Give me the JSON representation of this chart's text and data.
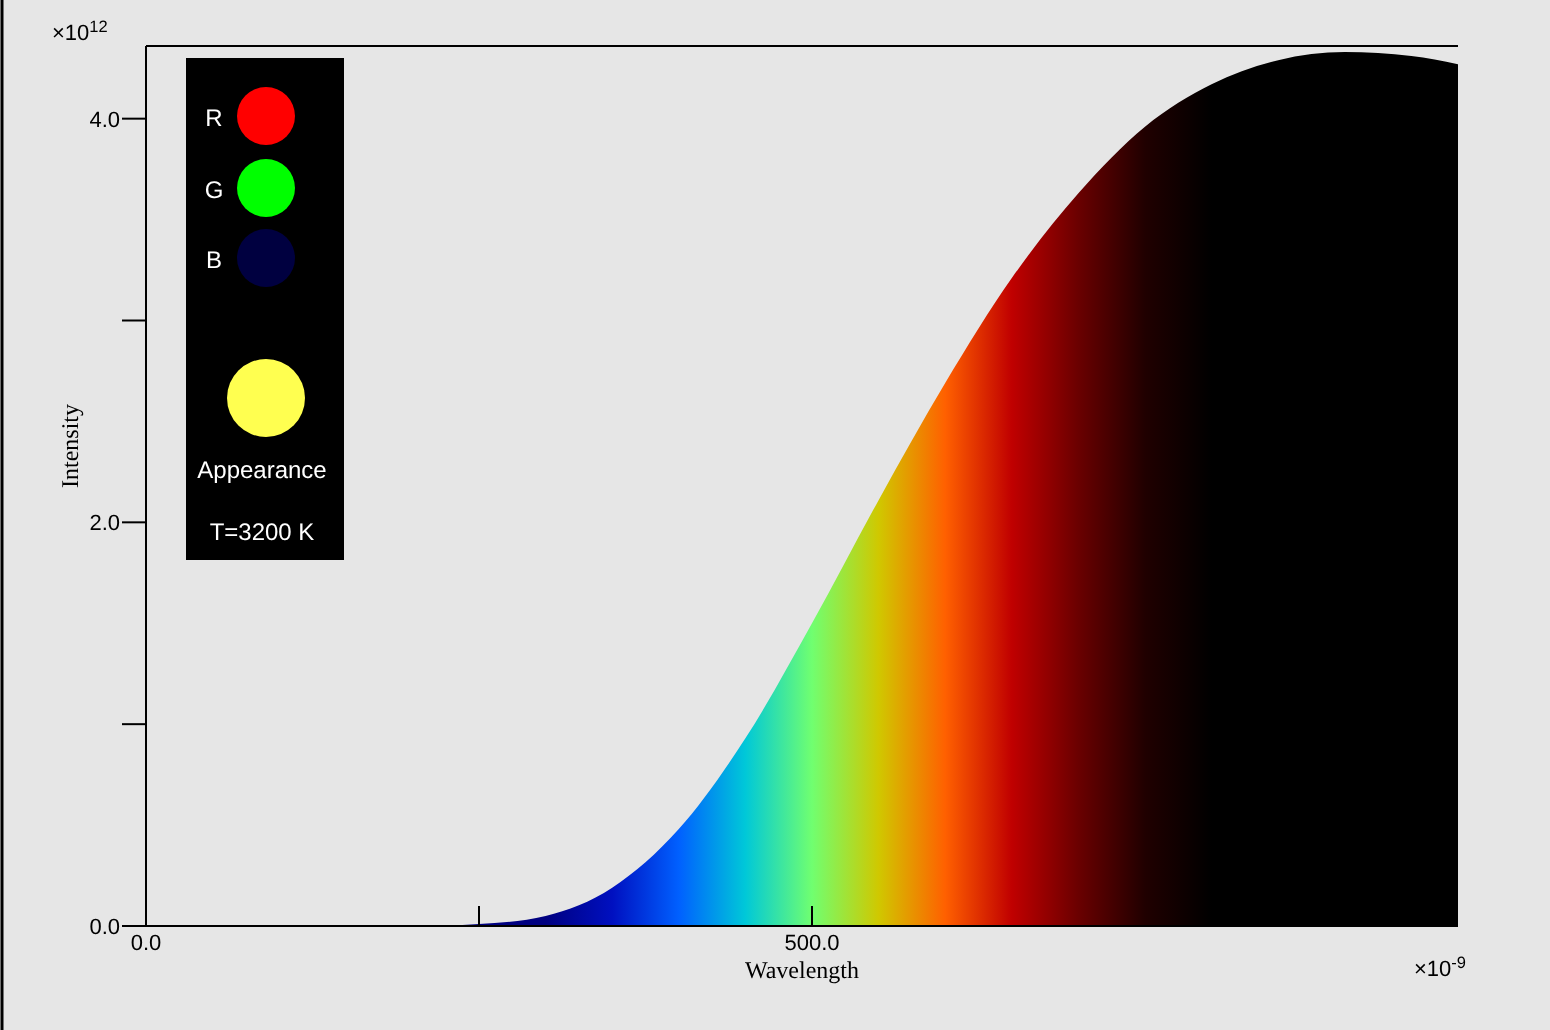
{
  "chart_data": {
    "type": "area",
    "xlabel": "Wavelength",
    "ylabel": "Intensity",
    "x": [
      0,
      50,
      100,
      150,
      200,
      250,
      300,
      350,
      400,
      450,
      500,
      550,
      600,
      650,
      700,
      750,
      800,
      850,
      900,
      950,
      985
    ],
    "values": [
      0,
      0,
      0,
      0,
      0,
      0.01,
      0.05,
      0.19,
      0.48,
      0.93,
      1.5,
      2.11,
      2.69,
      3.21,
      3.63,
      3.96,
      4.17,
      4.29,
      4.33,
      4.31,
      4.27
    ],
    "colors": [
      "#000080",
      "#000080",
      "#000080",
      "#000080",
      "#000080",
      "#000080",
      "#000080",
      "#0010c0",
      "#0060ff",
      "#00c8d8",
      "#70ff70",
      "#d0c800",
      "#ff6000",
      "#c00000",
      "#6a0000",
      "#200000",
      "#000000",
      "#000000",
      "#000000",
      "#000000",
      "#000000"
    ],
    "xlim": [
      0,
      985
    ],
    "ylim": [
      0,
      4.36
    ],
    "xticks": [
      {
        "value": 0,
        "label": "0.0"
      },
      {
        "value": 250,
        "label": null
      },
      {
        "value": 500,
        "label": "500.0"
      }
    ],
    "yticks": [
      {
        "value": 0,
        "label": "0.0"
      },
      {
        "value": 1,
        "label": null
      },
      {
        "value": 2,
        "label": "2.0"
      },
      {
        "value": 3,
        "label": null
      },
      {
        "value": 4,
        "label": "4.0"
      }
    ],
    "annotations": [
      "×10$^{12}$",
      "×10$^{-9}$",
      "R",
      "G",
      "B",
      "Appearance",
      "T=3200 K"
    ]
  }
}
